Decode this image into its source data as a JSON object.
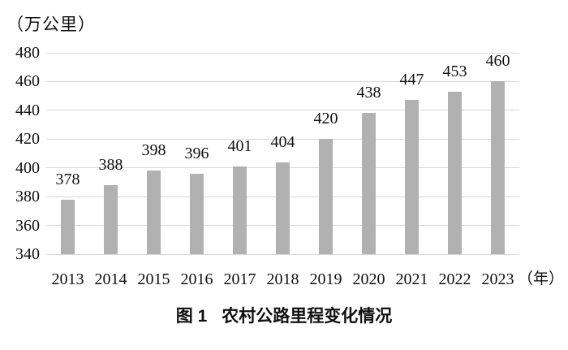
{
  "figure": {
    "caption_label": "图 1",
    "caption_title": "农村公路里程变化情况"
  },
  "chart_data": {
    "type": "bar",
    "title": "图 1 农村公路里程变化情况",
    "unit_label": "（万公里）",
    "x_unit_label": "（年）",
    "categories": [
      "2013",
      "2014",
      "2015",
      "2016",
      "2017",
      "2018",
      "2019",
      "2020",
      "2021",
      "2022",
      "2023"
    ],
    "values": [
      378,
      388,
      398,
      396,
      401,
      404,
      420,
      438,
      447,
      453,
      460
    ],
    "xlabel": "年",
    "ylabel": "万公里",
    "ylim": [
      340,
      480
    ],
    "y_ticks": [
      340,
      360,
      380,
      400,
      420,
      440,
      460,
      480
    ],
    "grid": true,
    "legend_position": "none",
    "bar_color": "#b1b1b1",
    "grid_color": "#d8d8d8",
    "text_color": "#111111",
    "background_color": "#ffffff"
  }
}
